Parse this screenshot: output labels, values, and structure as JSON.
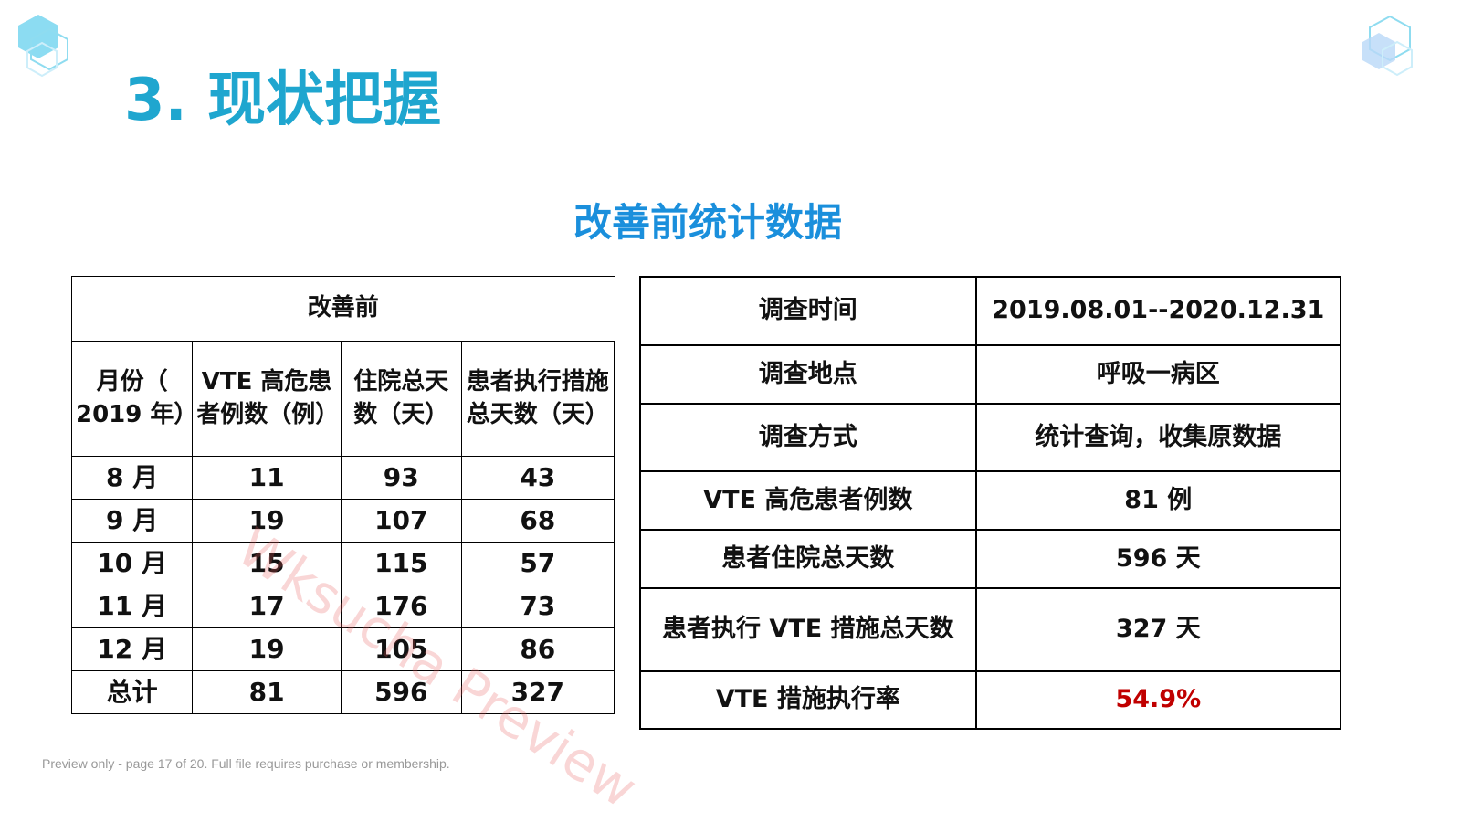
{
  "header": {
    "title": "3. 现状把握",
    "subtitle": "改善前统计数据"
  },
  "left_table": {
    "caption": "改善前",
    "columns": [
      "月份（ 2019 年）",
      "VTE 高危患者例数（例）",
      "住院总天数（天）",
      "患者执行措施总天数（天）"
    ],
    "rows": [
      [
        "8 月",
        "11",
        "93",
        "43"
      ],
      [
        "9 月",
        "19",
        "107",
        "68"
      ],
      [
        "10 月",
        "15",
        "115",
        "57"
      ],
      [
        "11 月",
        "17",
        "176",
        "73"
      ],
      [
        "12 月",
        "19",
        "105",
        "86"
      ],
      [
        "总计",
        "81",
        "596",
        "327"
      ]
    ]
  },
  "right_table": {
    "rows": [
      [
        "调查时间",
        "2019.08.01--2020.12.31"
      ],
      [
        "调查地点",
        "呼吸一病区"
      ],
      [
        "调查方式",
        "统计查询，收集原数据"
      ],
      [
        "VTE 高危患者例数",
        "81 例"
      ],
      [
        "患者住院总天数",
        "596 天"
      ],
      [
        "患者执行 VTE 措施总天数",
        "327 天"
      ],
      [
        "VTE 措施执行率",
        "54.9%"
      ]
    ]
  },
  "watermark": "Wksucha Preview",
  "footer": "Preview only - page 17 of 20. Full file requires purchase or membership."
}
